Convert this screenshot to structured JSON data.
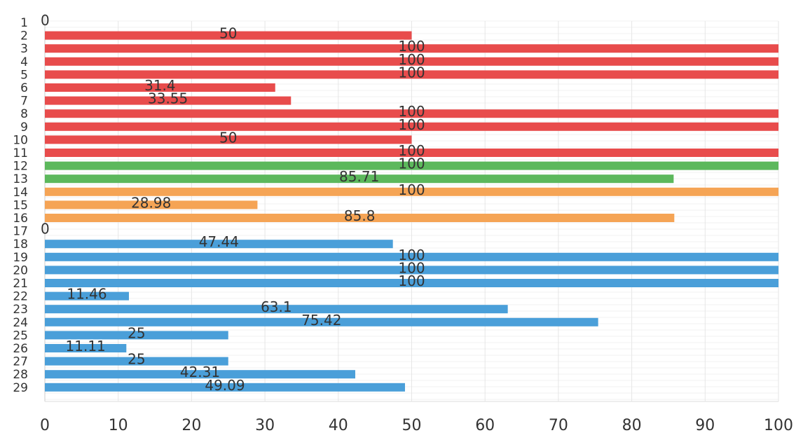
{
  "chart_data": {
    "type": "bar",
    "orientation": "horizontal",
    "categories": [
      "1",
      "2",
      "3",
      "4",
      "5",
      "6",
      "7",
      "8",
      "9",
      "10",
      "11",
      "12",
      "13",
      "14",
      "15",
      "16",
      "17",
      "18",
      "19",
      "20",
      "21",
      "22",
      "23",
      "24",
      "25",
      "26",
      "27",
      "28",
      "29"
    ],
    "values": [
      0,
      50,
      100,
      100,
      100,
      31.4,
      33.55,
      100,
      100,
      50,
      100,
      100,
      85.71,
      100,
      28.98,
      85.8,
      0,
      47.44,
      100,
      100,
      100,
      11.46,
      63.1,
      75.42,
      25,
      11.11,
      25,
      42.31,
      49.09
    ],
    "data_labels": [
      "0",
      "50",
      "100",
      "100",
      "100",
      "31.4",
      "33.55",
      "100",
      "100",
      "50",
      "100",
      "100",
      "85.71",
      "100",
      "28.98",
      "85.8",
      "0",
      "47.44",
      "100",
      "100",
      "100",
      "11.46",
      "63.1",
      "75.42",
      "25",
      "11.11",
      "25",
      "42.31",
      "49.09"
    ],
    "bar_colors": [
      "#e84c4c",
      "#e84c4c",
      "#e84c4c",
      "#e84c4c",
      "#e84c4c",
      "#e84c4c",
      "#e84c4c",
      "#e84c4c",
      "#e84c4c",
      "#e84c4c",
      "#e84c4c",
      "#5cb85c",
      "#5cb85c",
      "#f5a455",
      "#f5a455",
      "#f5a455",
      "#4a9fd9",
      "#4a9fd9",
      "#4a9fd9",
      "#4a9fd9",
      "#4a9fd9",
      "#4a9fd9",
      "#4a9fd9",
      "#4a9fd9",
      "#4a9fd9",
      "#4a9fd9",
      "#4a9fd9",
      "#4a9fd9",
      "#4a9fd9"
    ],
    "xlim": [
      0,
      100
    ],
    "x_ticks": [
      0,
      10,
      20,
      30,
      40,
      50,
      60,
      70,
      80,
      90,
      100
    ],
    "x_tick_labels": [
      "0",
      "10",
      "20",
      "30",
      "40",
      "50",
      "60",
      "70",
      "80",
      "90",
      "100"
    ],
    "grid": true,
    "legend": "none",
    "title": "",
    "xlabel": "",
    "ylabel": ""
  }
}
